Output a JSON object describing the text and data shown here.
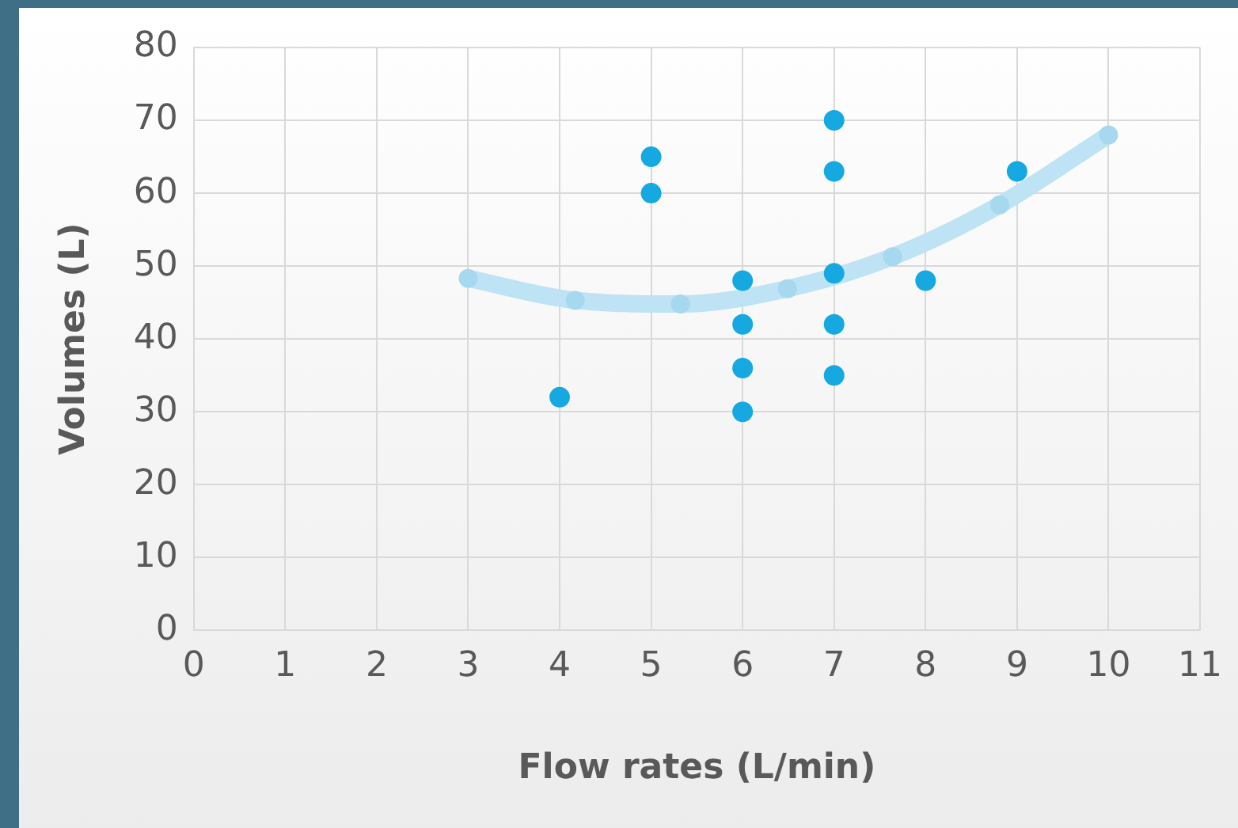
{
  "chart_data": {
    "type": "scatter",
    "xlabel": "Flow rates (L/min)",
    "ylabel": "Volumes (L)",
    "xlim": [
      0,
      11
    ],
    "xticks": [
      0,
      1,
      2,
      3,
      4,
      5,
      6,
      7,
      8,
      9,
      10,
      11
    ],
    "ylim": [
      0,
      80
    ],
    "yticks": [
      0,
      10,
      20,
      30,
      40,
      50,
      60,
      70,
      80
    ],
    "grid": true,
    "legend": false,
    "marker": "circle",
    "series": [
      {
        "color": "#16a9e1",
        "x": [
          4,
          5,
          5,
          6,
          6,
          6,
          6,
          7,
          7,
          7,
          7,
          7,
          8,
          9
        ],
        "values": [
          32,
          65,
          60,
          48,
          42,
          36,
          30,
          70,
          63,
          49,
          42,
          35,
          48,
          63
        ]
      },
      {
        "type": "line",
        "color": "#bde3f4",
        "x": [
          3,
          4.17,
          5.32,
          6.49,
          7.64,
          8.81,
          10
        ],
        "values": [
          48.3,
          45.3,
          44.8,
          46.9,
          51.3,
          58.4,
          68
        ]
      }
    ]
  }
}
